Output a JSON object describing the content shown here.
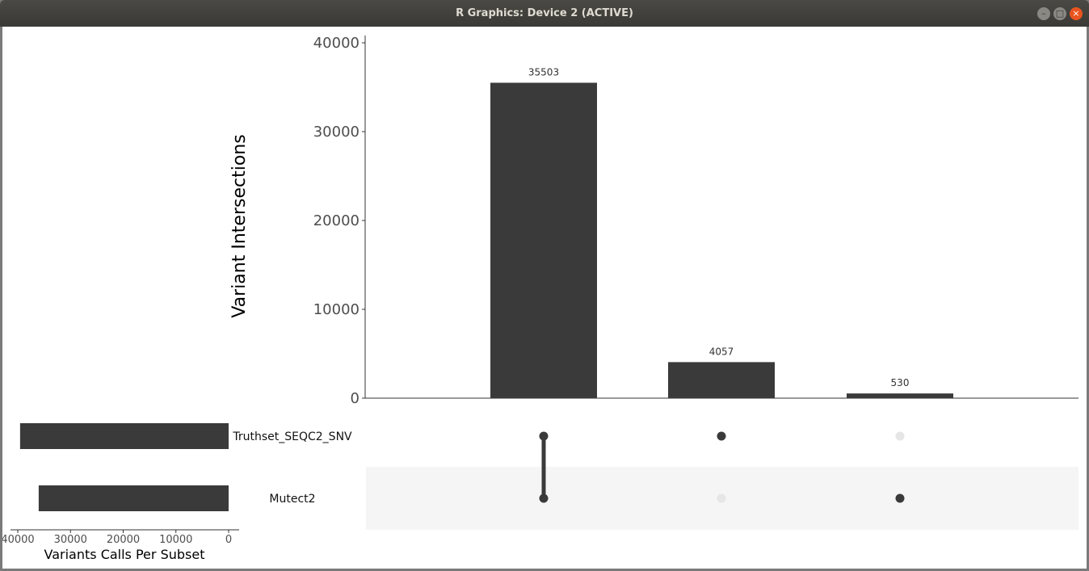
{
  "window": {
    "title": "R Graphics: Device 2 (ACTIVE)",
    "buttons": [
      "minimize",
      "maximize",
      "close"
    ],
    "close_color": "#e95420"
  },
  "chart_data": {
    "type": "upset",
    "intersection_bars": {
      "ylabel": "Variant Intersections",
      "ylim": [
        0,
        40000
      ],
      "ticks": [
        0,
        10000,
        20000,
        30000,
        40000
      ],
      "values": [
        35503,
        4057,
        530
      ],
      "labels": [
        "35503",
        "4057",
        "530"
      ],
      "bar_color": "#3a3a3a"
    },
    "sets": {
      "names": [
        "Truthset_SEQC2_SNV",
        "Mutect2"
      ],
      "sizes": [
        39560,
        36033
      ],
      "xlabel": "Variants Calls Per Subset",
      "xlim": [
        40000,
        0
      ],
      "ticks": [
        40000,
        30000,
        20000,
        10000,
        0
      ],
      "tick_labels": [
        "40000",
        "30000",
        "20000",
        "10000",
        "0"
      ]
    },
    "matrix": [
      [
        1,
        1
      ],
      [
        1,
        0
      ],
      [
        0,
        1
      ]
    ],
    "active_dot_color": "#3a3a3a",
    "inactive_dot_color": "#e6e6e6",
    "band_color": "#f5f5f5"
  }
}
